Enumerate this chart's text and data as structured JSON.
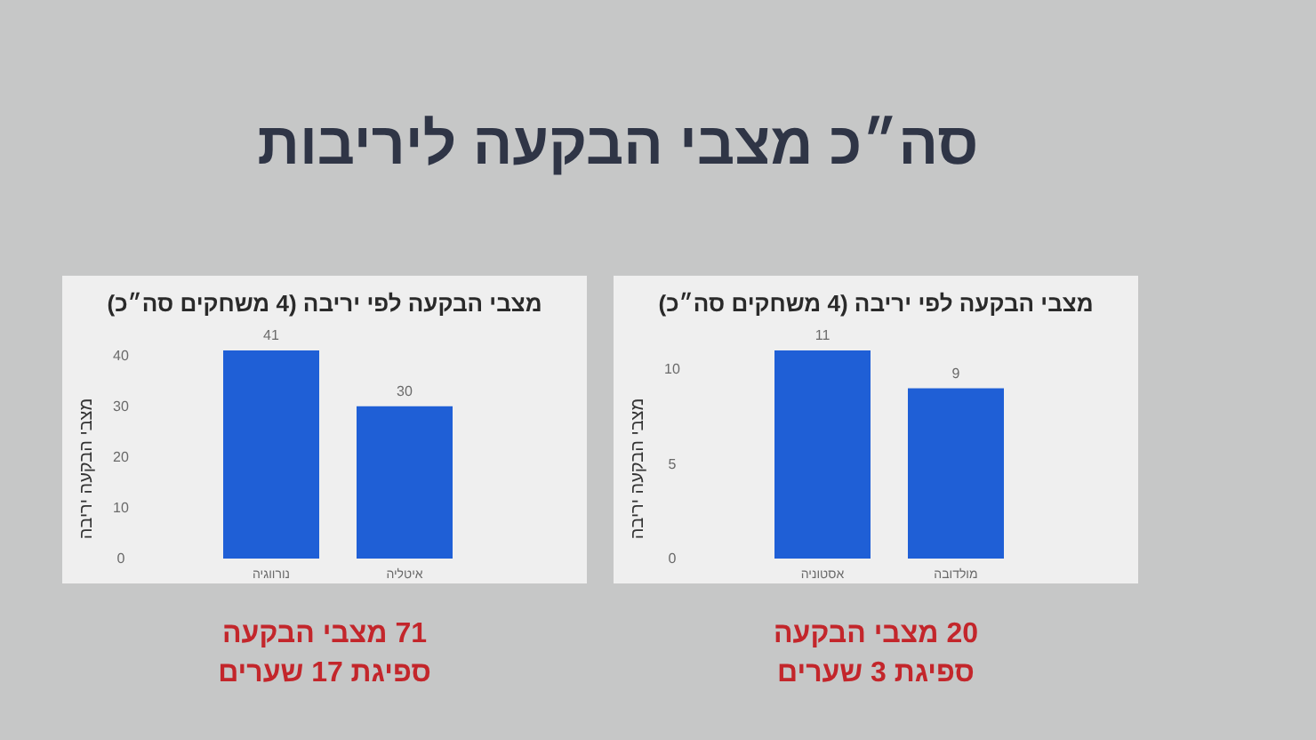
{
  "chart_data": [
    {
      "type": "other",
      "title": "סה״כ מצבי הבקעה ליריבות"
    },
    {
      "type": "bar",
      "title": "מצבי הבקעה לפי יריבה (4 משחקים סה״כ)",
      "ylabel": "מצבי הבקעה יריבה",
      "categories": [
        "נורווגיה",
        "איטליה"
      ],
      "values": [
        41,
        30
      ],
      "color": "#1f5fd6",
      "ylim": [
        0,
        41
      ],
      "yticks": [
        0,
        10,
        20,
        30,
        40
      ],
      "data_labels": true,
      "annotations": [
        "71 מצבי הבקעה",
        "ספיגת 17 שערים"
      ]
    },
    {
      "type": "bar",
      "title": "מצבי הבקעה לפי יריבה (4 משחקים סה״כ)",
      "ylabel": "מצבי הבקעה יריבה",
      "categories": [
        "אסטוניה",
        "מולדובה"
      ],
      "values": [
        11,
        9
      ],
      "color": "#1f5fd6",
      "ylim": [
        0,
        11
      ],
      "yticks": [
        0,
        5,
        10
      ],
      "data_labels": true,
      "annotations": [
        "20 מצבי הבקעה",
        "ספיגת 3 שערים"
      ]
    }
  ]
}
